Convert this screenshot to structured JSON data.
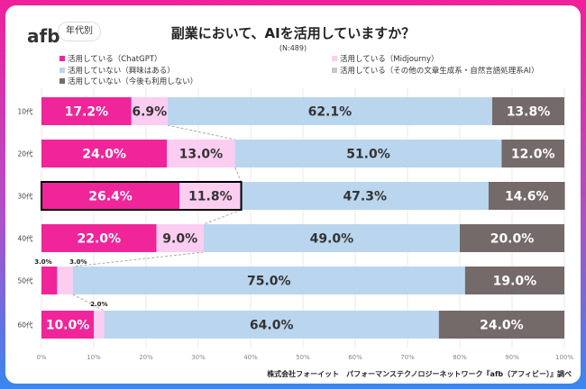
{
  "header": {
    "logo": "afb",
    "filter_label": "年代別"
  },
  "chart_data": {
    "type": "bar",
    "orientation": "horizontal-stacked-100",
    "title": "副業において、AIを活用していますか？",
    "subtitle": "(N:489)",
    "categories": [
      "10代",
      "20代",
      "30代",
      "40代",
      "50代",
      "60代"
    ],
    "series": [
      {
        "name": "活用している（ChatGPT）",
        "color": "#f0259a",
        "values": [
          17.2,
          24.0,
          26.4,
          22.0,
          3.0,
          10.0
        ]
      },
      {
        "name": "活用している（Midjourny）",
        "color": "#fbcdf0",
        "values": [
          6.9,
          13.0,
          11.8,
          9.0,
          3.0,
          2.0
        ]
      },
      {
        "name": "活用している（その他の文章生成系・自然言語処理系AI）",
        "color": "#c8c8c8",
        "values": [
          0,
          0,
          0,
          0,
          0,
          0
        ]
      },
      {
        "name": "活用していない（興味はある）",
        "color": "#bad6ee",
        "values": [
          62.1,
          51.0,
          47.3,
          49.0,
          75.0,
          64.0
        ]
      },
      {
        "name": "活用していない（今後も利用しない）",
        "color": "#746a69",
        "values": [
          13.8,
          12.0,
          14.6,
          20.0,
          19.0,
          24.0
        ]
      }
    ],
    "data_labels": [
      [
        "17.2%",
        "6.9%",
        "",
        "62.1%",
        "13.8%"
      ],
      [
        "24.0%",
        "13.0%",
        "",
        "51.0%",
        "12.0%"
      ],
      [
        "26.4%",
        "11.8%",
        "",
        "47.3%",
        "14.6%"
      ],
      [
        "22.0%",
        "9.0%",
        "",
        "49.0%",
        "20.0%"
      ],
      [
        "3.0%",
        "3.0%",
        "",
        "75.0%",
        "19.0%"
      ],
      [
        "10.0%",
        "2.0%",
        "",
        "64.0%",
        "24.0%"
      ]
    ],
    "highlighted_category": "30代",
    "xlim": [
      0,
      100
    ],
    "xticks": [
      "0%",
      "10%",
      "20%",
      "30%",
      "40%",
      "50%",
      "60%",
      "70%",
      "80%",
      "90%",
      "100%"
    ],
    "grid": true,
    "legend_placement": "top"
  },
  "legend_left": [
    0,
    3,
    4
  ],
  "legend_right": [
    1,
    2
  ],
  "footer": "株式会社フォーイット　パフォーマンステクノロジーネットワーク『afb（アフィビー）』調べ"
}
